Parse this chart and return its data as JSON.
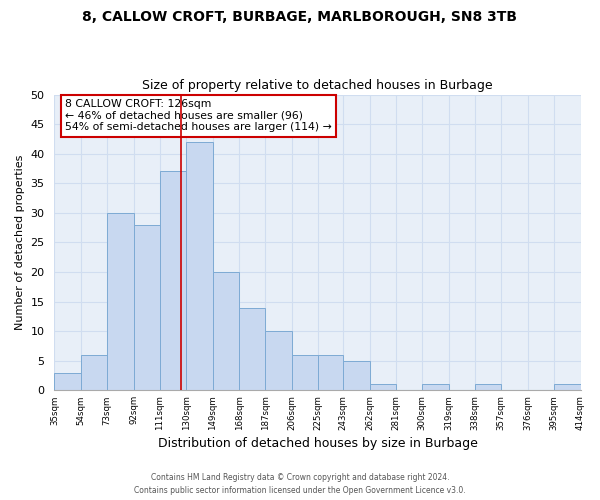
{
  "title1": "8, CALLOW CROFT, BURBAGE, MARLBOROUGH, SN8 3TB",
  "title2": "Size of property relative to detached houses in Burbage",
  "xlabel": "Distribution of detached houses by size in Burbage",
  "ylabel": "Number of detached properties",
  "bin_edges": [
    35,
    54,
    73,
    92,
    111,
    130,
    149,
    168,
    187,
    206,
    225,
    243,
    262,
    281,
    300,
    319,
    338,
    357,
    376,
    395,
    414
  ],
  "bar_heights": [
    3,
    6,
    30,
    28,
    37,
    42,
    20,
    14,
    10,
    6,
    6,
    5,
    1,
    0,
    1,
    0,
    1,
    0,
    0,
    1
  ],
  "bar_color": "#c8d8f0",
  "bar_edgecolor": "#7daad4",
  "vline_x": 126,
  "vline_color": "#cc0000",
  "ylim": [
    0,
    50
  ],
  "yticks": [
    0,
    5,
    10,
    15,
    20,
    25,
    30,
    35,
    40,
    45,
    50
  ],
  "annotation_line1": "8 CALLOW CROFT: 126sqm",
  "annotation_line2": "← 46% of detached houses are smaller (96)",
  "annotation_line3": "54% of semi-detached houses are larger (114) →",
  "annotation_box_color": "#ffffff",
  "annotation_box_edgecolor": "#cc0000",
  "footer1": "Contains HM Land Registry data © Crown copyright and database right 2024.",
  "footer2": "Contains public sector information licensed under the Open Government Licence v3.0.",
  "x_ticklabels": [
    "35sqm",
    "54sqm",
    "73sqm",
    "92sqm",
    "111sqm",
    "130sqm",
    "149sqm",
    "168sqm",
    "187sqm",
    "206sqm",
    "225sqm",
    "243sqm",
    "262sqm",
    "281sqm",
    "300sqm",
    "319sqm",
    "338sqm",
    "357sqm",
    "376sqm",
    "395sqm",
    "414sqm"
  ],
  "grid_color": "#d0ddf0",
  "background_color": "#e8eff8"
}
